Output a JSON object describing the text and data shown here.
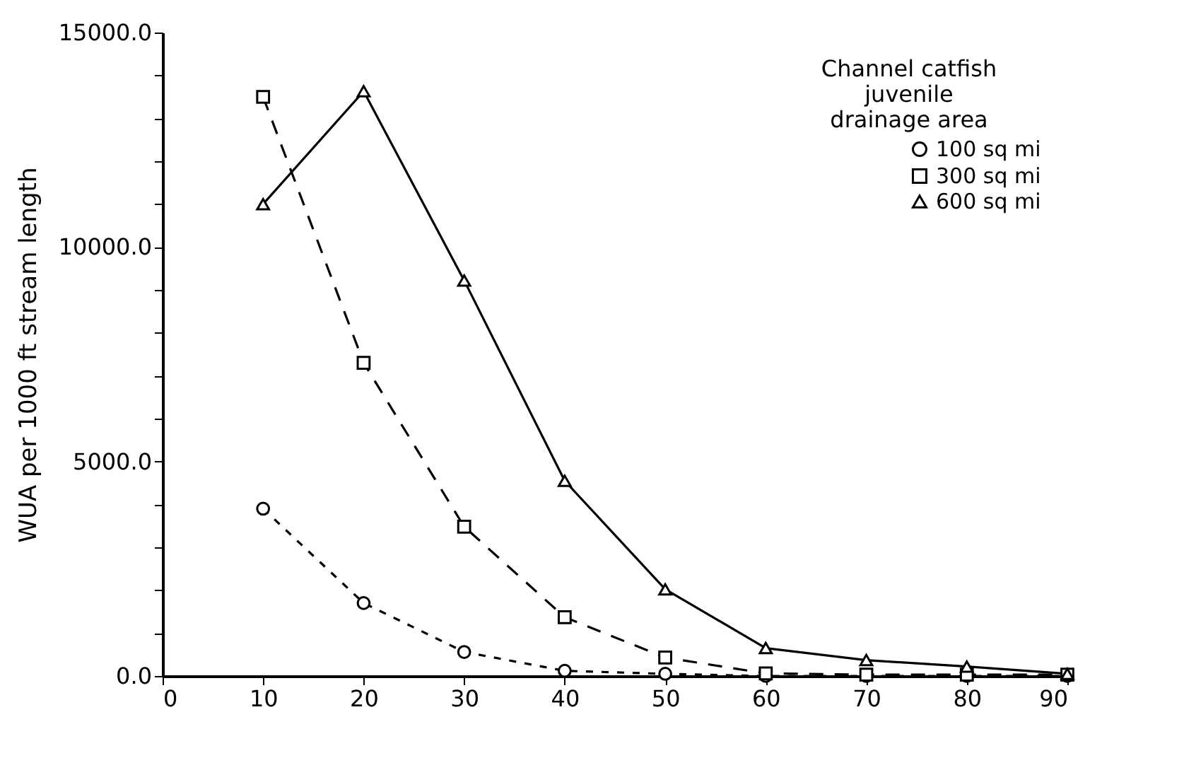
{
  "chart_data": {
    "type": "line",
    "ylabel": "WUA per 1000 ft stream length",
    "legend_title": "Channel catfish\njuvenile\ndrainage area",
    "legend": "top right",
    "grid": false,
    "x": [
      10,
      20,
      30,
      40,
      50,
      60,
      70,
      80,
      90
    ],
    "xlim": [
      0,
      90
    ],
    "xticks": [
      0,
      10,
      20,
      30,
      40,
      50,
      60,
      70,
      80,
      90
    ],
    "ylim": [
      0,
      15000
    ],
    "yticks": [
      {
        "value": 0,
        "label": "0.0"
      },
      {
        "value": 1000,
        "label": null
      },
      {
        "value": 2000,
        "label": null
      },
      {
        "value": 3000,
        "label": null
      },
      {
        "value": 4000,
        "label": null
      },
      {
        "value": 5000,
        "label": "5000.0"
      },
      {
        "value": 6000,
        "label": null
      },
      {
        "value": 7000,
        "label": null
      },
      {
        "value": 8000,
        "label": null
      },
      {
        "value": 9000,
        "label": null
      },
      {
        "value": 10000,
        "label": "10000.0"
      },
      {
        "value": 11000,
        "label": null
      },
      {
        "value": 12000,
        "label": null
      },
      {
        "value": 13000,
        "label": null
      },
      {
        "value": 14000,
        "label": null
      },
      {
        "value": 15000,
        "label": "15000.0"
      }
    ],
    "series": [
      {
        "name": "100 sq mi",
        "color": "#000000",
        "marker": "circle",
        "line_style": "dashed",
        "values": [
          3900,
          1700,
          560,
          120,
          50,
          0,
          0,
          0,
          0
        ]
      },
      {
        "name": "300 sq mi",
        "color": "#000000",
        "marker": "square",
        "line_style": "dashed",
        "values": [
          13500,
          7300,
          3480,
          1370,
          430,
          60,
          30,
          30,
          30
        ]
      },
      {
        "name": "600 sq mi",
        "color": "#000000",
        "marker": "triangle",
        "line_style": "solid",
        "values": [
          11000,
          13630,
          9220,
          4550,
          2020,
          650,
          370,
          220,
          50
        ]
      }
    ]
  }
}
